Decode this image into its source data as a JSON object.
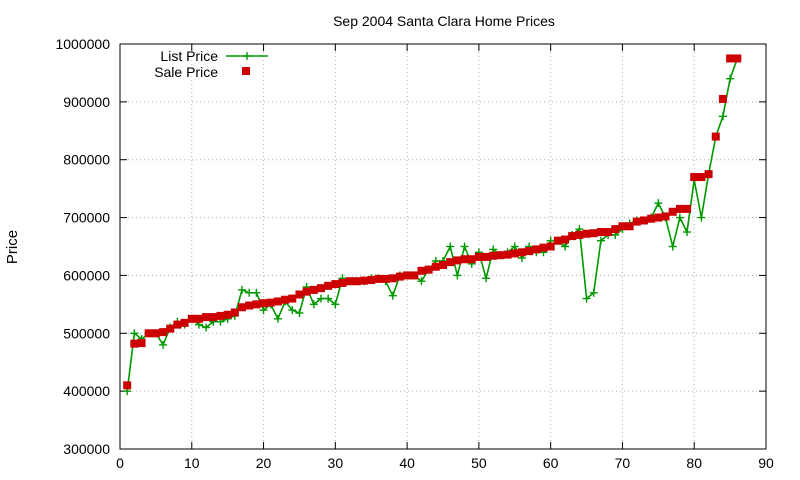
{
  "chart_data": {
    "type": "line",
    "title": "Sep 2004 Santa Clara Home Prices",
    "xlabel": "",
    "ylabel": "Price",
    "xlim": [
      0,
      90
    ],
    "ylim": [
      300000,
      1000000
    ],
    "xticks": [
      "0",
      "10",
      "20",
      "30",
      "40",
      "50",
      "60",
      "70",
      "80",
      "90"
    ],
    "yticks": [
      "300000",
      "400000",
      "500000",
      "600000",
      "700000",
      "800000",
      "900000",
      "1000000"
    ],
    "legend_position": "top-left",
    "grid": true,
    "x": [
      1,
      2,
      3,
      4,
      5,
      6,
      7,
      8,
      9,
      10,
      11,
      12,
      13,
      14,
      15,
      16,
      17,
      18,
      19,
      20,
      21,
      22,
      23,
      24,
      25,
      26,
      27,
      28,
      29,
      30,
      31,
      32,
      33,
      34,
      35,
      36,
      37,
      38,
      39,
      40,
      41,
      42,
      43,
      44,
      45,
      46,
      47,
      48,
      49,
      50,
      51,
      52,
      53,
      54,
      55,
      56,
      57,
      58,
      59,
      60,
      61,
      62,
      63,
      64,
      65,
      66,
      67,
      68,
      69,
      70,
      71,
      72,
      73,
      74,
      75,
      76,
      77,
      78,
      79,
      80,
      81,
      82,
      83,
      84,
      85,
      86
    ],
    "series": [
      {
        "name": "List Price",
        "color": "#009900",
        "marker": "plus",
        "values": [
          400000,
          500000,
          490000,
          500000,
          500000,
          480000,
          510000,
          520000,
          515000,
          525000,
          515000,
          510000,
          520000,
          520000,
          525000,
          530000,
          575000,
          570000,
          570000,
          540000,
          550000,
          525000,
          555000,
          540000,
          535000,
          580000,
          550000,
          560000,
          560000,
          550000,
          595000,
          590000,
          590000,
          590000,
          595000,
          595000,
          590000,
          565000,
          600000,
          600000,
          600000,
          590000,
          610000,
          625000,
          625000,
          650000,
          600000,
          650000,
          620000,
          640000,
          595000,
          645000,
          635000,
          640000,
          650000,
          630000,
          650000,
          640000,
          640000,
          660000,
          660000,
          650000,
          670000,
          680000,
          560000,
          570000,
          660000,
          670000,
          670000,
          680000,
          690000,
          695000,
          695000,
          700000,
          725000,
          700000,
          650000,
          700000,
          675000,
          765000,
          700000,
          775000,
          840000,
          875000,
          940000,
          975000
        ]
      },
      {
        "name": "Sale Price",
        "color": "#cc0000",
        "marker": "square",
        "values": [
          410000,
          482000,
          483000,
          500000,
          500000,
          502000,
          508000,
          515000,
          518000,
          525000,
          525000,
          528000,
          528000,
          530000,
          532000,
          536000,
          545000,
          548000,
          550000,
          552000,
          553000,
          555000,
          558000,
          560000,
          567000,
          572000,
          575000,
          578000,
          582000,
          585000,
          587000,
          590000,
          590000,
          591000,
          592000,
          594000,
          594000,
          595000,
          598000,
          600000,
          600000,
          608000,
          610000,
          615000,
          618000,
          623000,
          626000,
          628000,
          628000,
          632000,
          632000,
          634000,
          635000,
          636000,
          638000,
          640000,
          642000,
          645000,
          648000,
          650000,
          660000,
          662000,
          668000,
          670000,
          672000,
          673000,
          675000,
          675000,
          680000,
          685000,
          685000,
          693000,
          695000,
          698000,
          700000,
          702000,
          710000,
          715000,
          715000,
          770000,
          770000,
          775000,
          840000,
          905000,
          975000,
          975000
        ]
      }
    ]
  }
}
